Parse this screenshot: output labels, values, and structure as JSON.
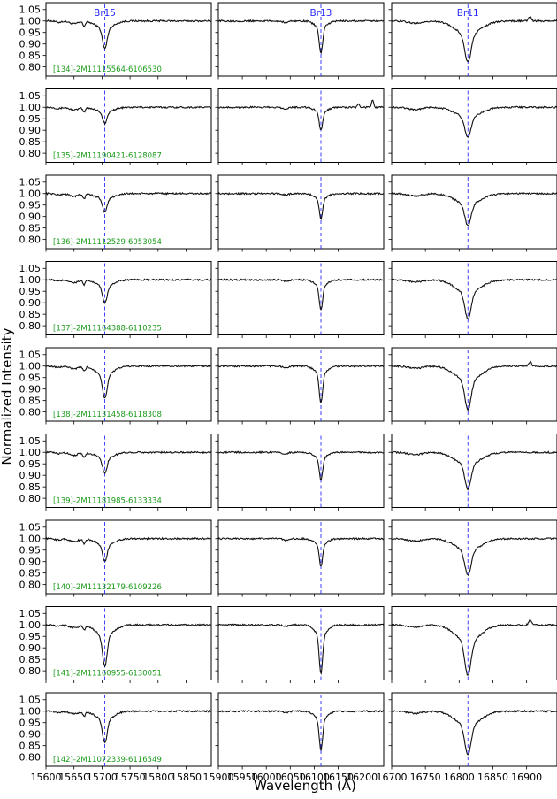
{
  "figure": {
    "ylabel": "Normalized Intensity",
    "xlabel": "Wavelength (Å)",
    "y_ticks": [
      "1.05",
      "1.00",
      "0.95",
      "0.90",
      "0.85",
      "0.80"
    ],
    "colors": {
      "spectrum": "#111111",
      "line_marker": "#2b2bff",
      "star_label": "#1a9a1a",
      "axes": "#000000"
    }
  },
  "chart_data": {
    "type": "line",
    "grid": false,
    "ylim": [
      0.76,
      1.08
    ],
    "columns": [
      {
        "line": "Br15",
        "center": 15705,
        "xlim": [
          15600,
          15895
        ],
        "xticks": [
          15600,
          15650,
          15700,
          15750,
          15800,
          15850
        ],
        "tick_labels": [
          "15600",
          "15650",
          "15700",
          "15750",
          "15800",
          "15850"
        ]
      },
      {
        "line": "Br13",
        "center": 16114,
        "xlim": [
          15900,
          16245
        ],
        "xticks": [
          15900,
          15950,
          16000,
          16050,
          16100,
          16150,
          16200
        ],
        "tick_labels": [
          "15900",
          "15950",
          "16000",
          "16050",
          "16100",
          "16150",
          "16200"
        ]
      },
      {
        "line": "Br11",
        "center": 16813,
        "xlim": [
          16700,
          16945
        ],
        "xticks": [
          16700,
          16750,
          16800,
          16850,
          16900
        ],
        "tick_labels": [
          "16700",
          "16750",
          "16800",
          "16850",
          "16900"
        ]
      }
    ],
    "rows": [
      {
        "star": "[134]-2M11115564-6106530",
        "line_depths": [
          0.88,
          0.86,
          0.82
        ]
      },
      {
        "star": "[135]-2M11190421-6128087",
        "line_depths": [
          0.93,
          0.9,
          0.87
        ]
      },
      {
        "star": "[136]-2M11112529-6053054",
        "line_depths": [
          0.92,
          0.89,
          0.86
        ]
      },
      {
        "star": "[137]-2M11164388-6110235",
        "line_depths": [
          0.9,
          0.87,
          0.83
        ]
      },
      {
        "star": "[138]-2M11131458-6118308",
        "line_depths": [
          0.86,
          0.84,
          0.81
        ]
      },
      {
        "star": "[139]-2M11181985-6133334",
        "line_depths": [
          0.91,
          0.88,
          0.84
        ]
      },
      {
        "star": "[140]-2M11132179-6109226",
        "line_depths": [
          0.9,
          0.88,
          0.84
        ]
      },
      {
        "star": "[141]-2M11160955-6130051",
        "line_depths": [
          0.82,
          0.79,
          0.78
        ]
      },
      {
        "star": "[142]-2M11072339-6116549",
        "line_depths": [
          0.86,
          0.83,
          0.81
        ]
      }
    ]
  }
}
